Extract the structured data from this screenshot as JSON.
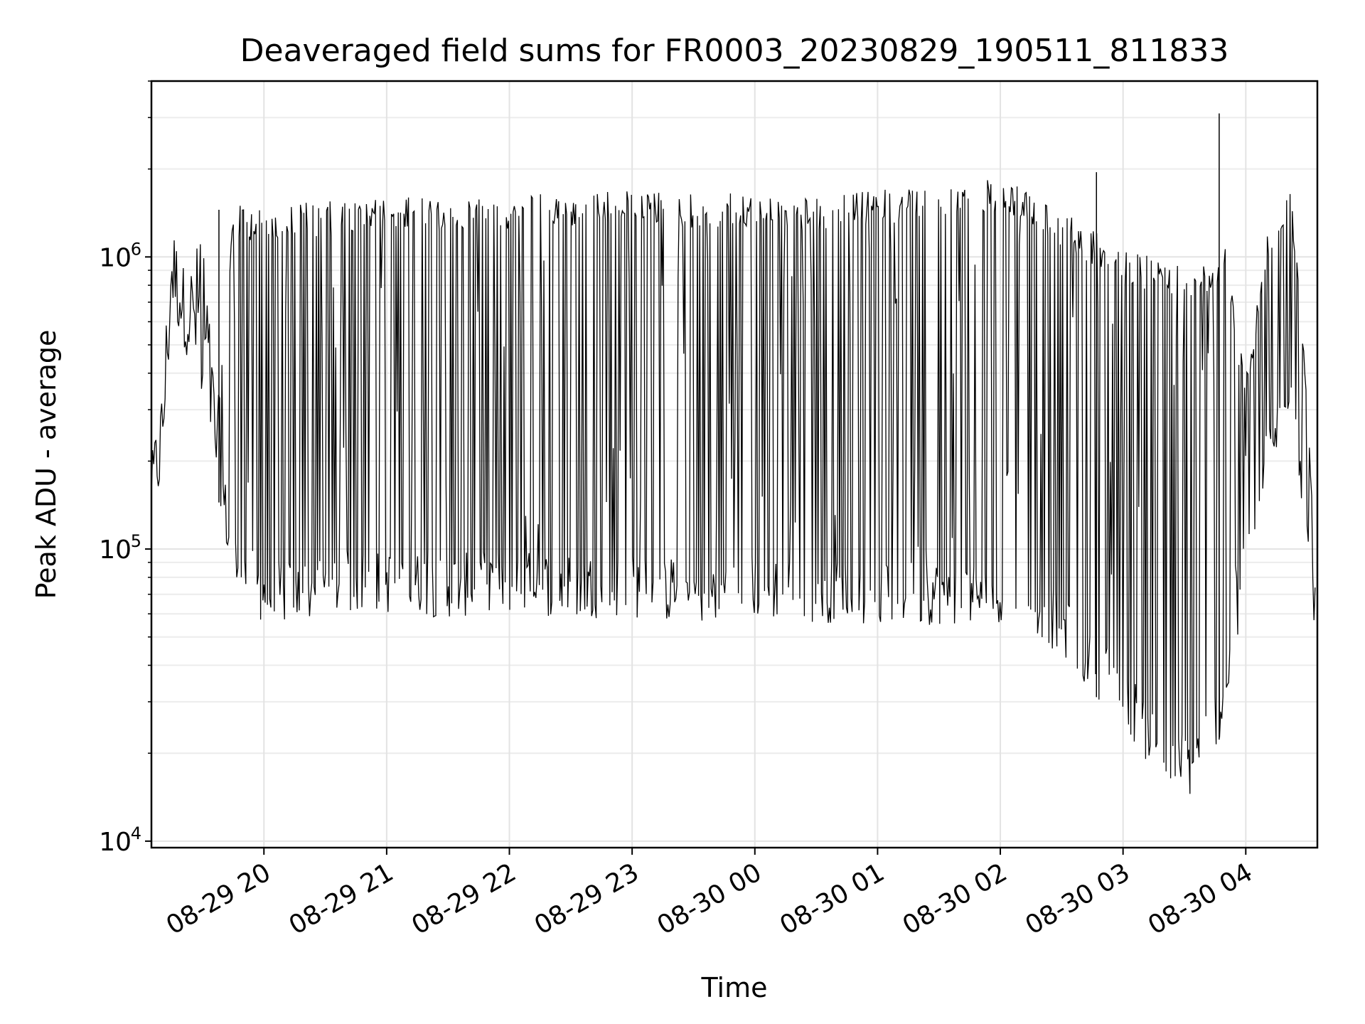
{
  "chart_data": {
    "type": "line",
    "title": "Deaveraged field sums for FR0003_20230829_190511_811833",
    "xlabel": "Time",
    "ylabel": "Peak ADU - average",
    "yscale": "log",
    "ylim": [
      9500,
      4000000
    ],
    "xlim": [
      "2023-08-29 19:05:00",
      "2023-08-30 04:35:00"
    ],
    "x_ticks": [
      {
        "time": "2023-08-29 20:00",
        "label": "08-29 20"
      },
      {
        "time": "2023-08-29 21:00",
        "label": "08-29 21"
      },
      {
        "time": "2023-08-29 22:00",
        "label": "08-29 22"
      },
      {
        "time": "2023-08-29 23:00",
        "label": "08-29 23"
      },
      {
        "time": "2023-08-30 00:00",
        "label": "08-30 00"
      },
      {
        "time": "2023-08-30 01:00",
        "label": "08-30 01"
      },
      {
        "time": "2023-08-30 02:00",
        "label": "08-30 02"
      },
      {
        "time": "2023-08-30 03:00",
        "label": "08-30 03"
      },
      {
        "time": "2023-08-30 04:00",
        "label": "08-30 04"
      }
    ],
    "y_ticks": [
      {
        "value": 10000,
        "base": "10",
        "exp": "4"
      },
      {
        "value": 100000,
        "base": "10",
        "exp": "5"
      },
      {
        "value": 1000000,
        "base": "10",
        "exp": "6"
      }
    ],
    "grid": true,
    "line_color": "#000000",
    "series": [
      {
        "envelope_points": [
          {
            "time": "2023-08-29 19:05",
            "low": 130000,
            "high": 210000
          },
          {
            "time": "2023-08-29 19:10",
            "low": 140000,
            "high": 380000
          },
          {
            "time": "2023-08-29 19:15",
            "low": 600000,
            "high": 1400000
          },
          {
            "time": "2023-08-29 19:22",
            "low": 450000,
            "high": 900000
          },
          {
            "time": "2023-08-29 19:30",
            "low": 280000,
            "high": 1400000
          },
          {
            "time": "2023-08-29 19:37",
            "low": 160000,
            "high": 300000
          },
          {
            "time": "2023-08-29 19:45",
            "low": 70000,
            "high": 1500000
          },
          {
            "time": "2023-08-29 20:00",
            "low": 55000,
            "high": 1500000
          },
          {
            "time": "2023-08-29 20:20",
            "low": 55000,
            "high": 1550000
          },
          {
            "time": "2023-08-29 20:40",
            "low": 60000,
            "high": 1550000
          },
          {
            "time": "2023-08-29 21:00",
            "low": 60000,
            "high": 1600000
          },
          {
            "time": "2023-08-29 21:30",
            "low": 58000,
            "high": 1600000
          },
          {
            "time": "2023-08-29 22:00",
            "low": 60000,
            "high": 1650000
          },
          {
            "time": "2023-08-29 22:30",
            "low": 58000,
            "high": 1650000
          },
          {
            "time": "2023-08-29 23:00",
            "low": 58000,
            "high": 1700000
          },
          {
            "time": "2023-08-29 23:30",
            "low": 55000,
            "high": 1650000
          },
          {
            "time": "2023-08-30 00:00",
            "low": 58000,
            "high": 1650000
          },
          {
            "time": "2023-08-30 00:30",
            "low": 56000,
            "high": 1600000
          },
          {
            "time": "2023-08-30 01:00",
            "low": 55000,
            "high": 1700000
          },
          {
            "time": "2023-08-30 01:30",
            "low": 55000,
            "high": 1800000
          },
          {
            "time": "2023-08-30 02:00",
            "low": 55000,
            "high": 1850000
          },
          {
            "time": "2023-08-30 02:20",
            "low": 50000,
            "high": 1600000
          },
          {
            "time": "2023-08-30 02:40",
            "low": 35000,
            "high": 1300000
          },
          {
            "time": "2023-08-30 03:00",
            "low": 25000,
            "high": 1050000
          },
          {
            "time": "2023-08-30 03:20",
            "low": 15000,
            "high": 1000000
          },
          {
            "time": "2023-08-30 03:35",
            "low": 14000,
            "high": 900000
          },
          {
            "time": "2023-08-30 03:50",
            "low": 25000,
            "high": 1100000
          },
          {
            "time": "2023-08-30 04:00",
            "low": 70000,
            "high": 400000
          },
          {
            "time": "2023-08-30 04:10",
            "low": 150000,
            "high": 1200000
          },
          {
            "time": "2023-08-30 04:22",
            "low": 300000,
            "high": 1700000
          },
          {
            "time": "2023-08-30 04:30",
            "low": 100000,
            "high": 400000
          },
          {
            "time": "2023-08-30 04:34",
            "low": 45000,
            "high": 100000
          }
        ],
        "spikes": [
          {
            "time": "2023-08-29 19:38",
            "value": 1450000
          },
          {
            "time": "2023-08-30 03:47",
            "value": 3100000
          },
          {
            "time": "2023-08-30 02:47",
            "value": 1950000
          }
        ]
      }
    ]
  }
}
